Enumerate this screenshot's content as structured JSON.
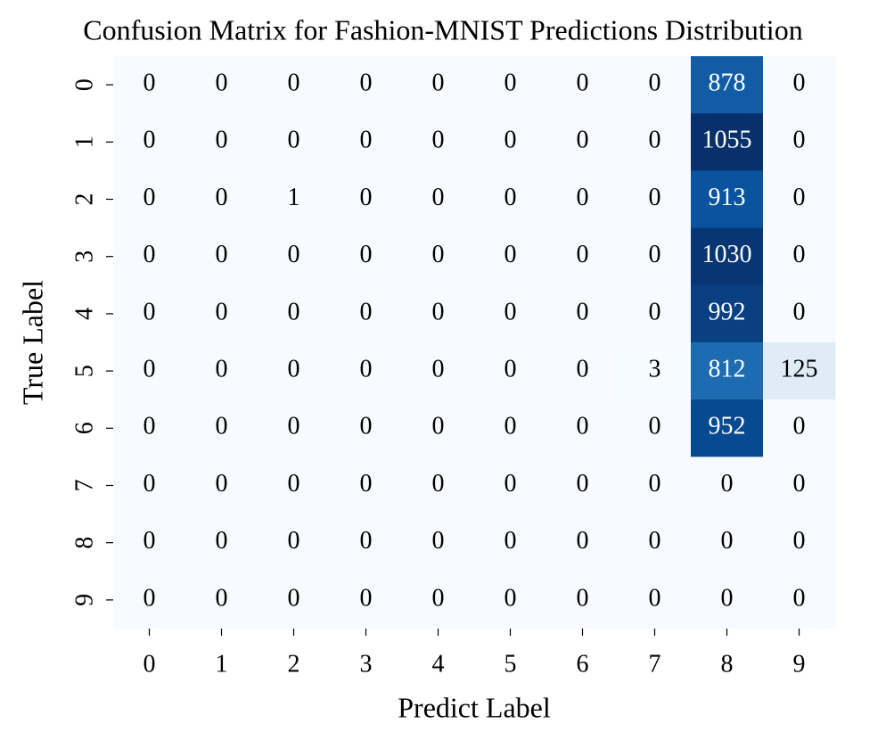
{
  "chart_data": {
    "type": "heatmap",
    "title": "Confusion Matrix for Fashion-MNIST Predictions Distribution",
    "xlabel": "Predict Label",
    "ylabel": "True Label",
    "x_categories": [
      "0",
      "1",
      "2",
      "3",
      "4",
      "5",
      "6",
      "7",
      "8",
      "9"
    ],
    "y_categories": [
      "0",
      "1",
      "2",
      "3",
      "4",
      "5",
      "6",
      "7",
      "8",
      "9"
    ],
    "colormap": "Blues",
    "z": [
      [
        0,
        0,
        0,
        0,
        0,
        0,
        0,
        0,
        878,
        0
      ],
      [
        0,
        0,
        0,
        0,
        0,
        0,
        0,
        0,
        1055,
        0
      ],
      [
        0,
        0,
        1,
        0,
        0,
        0,
        0,
        0,
        913,
        0
      ],
      [
        0,
        0,
        0,
        0,
        0,
        0,
        0,
        0,
        1030,
        0
      ],
      [
        0,
        0,
        0,
        0,
        0,
        0,
        0,
        0,
        992,
        0
      ],
      [
        0,
        0,
        0,
        0,
        0,
        0,
        0,
        3,
        812,
        125
      ],
      [
        0,
        0,
        0,
        0,
        0,
        0,
        0,
        0,
        952,
        0
      ],
      [
        0,
        0,
        0,
        0,
        0,
        0,
        0,
        0,
        0,
        0
      ],
      [
        0,
        0,
        0,
        0,
        0,
        0,
        0,
        0,
        0,
        0
      ],
      [
        0,
        0,
        0,
        0,
        0,
        0,
        0,
        0,
        0,
        0
      ]
    ]
  }
}
